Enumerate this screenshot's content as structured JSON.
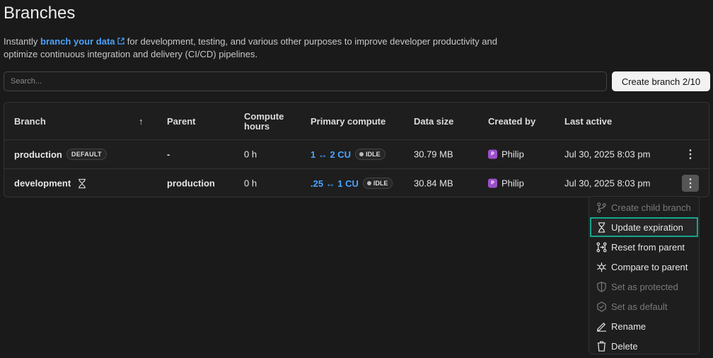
{
  "page": {
    "title": "Branches",
    "desc_pre": "Instantly ",
    "desc_link": "branch your data",
    "desc_post": " for development, testing, and various other purposes to improve developer productivity and optimize continuous integration and delivery (CI/CD) pipelines."
  },
  "search": {
    "placeholder": "Search...",
    "value": ""
  },
  "create_button": "Create branch 2/10",
  "table": {
    "headers": {
      "branch": "Branch",
      "parent": "Parent",
      "compute": "Compute hours",
      "primary": "Primary compute",
      "size": "Data size",
      "created": "Created by",
      "active": "Last active"
    },
    "sort": "ascending",
    "rows": [
      {
        "branch": "production",
        "badge": "DEFAULT",
        "parent": "-",
        "compute": "0 h",
        "cu": "1 ↔ 2 CU",
        "status": "IDLE",
        "size": "30.79 MB",
        "avatar": "P",
        "created": "Philip",
        "active": "Jul 30, 2025 8:03 pm"
      },
      {
        "branch": "development",
        "icon": "hourglass-icon",
        "parent": "production",
        "compute": "0 h",
        "cu": ".25 ↔ 1 CU",
        "status": "IDLE",
        "size": "30.84 MB",
        "avatar": "P",
        "created": "Philip",
        "active": "Jul 30, 2025 8:03 pm"
      }
    ]
  },
  "menu": {
    "items": [
      {
        "label": "Create child branch",
        "icon": "branch-icon",
        "disabled": true
      },
      {
        "label": "Update expiration",
        "icon": "hourglass-icon",
        "highlighted": true
      },
      {
        "label": "Reset from parent",
        "icon": "reset-icon"
      },
      {
        "label": "Compare to parent",
        "icon": "compare-icon"
      },
      {
        "label": "Set as protected",
        "icon": "shield-icon",
        "disabled": true
      },
      {
        "label": "Set as default",
        "icon": "check-badge-icon",
        "disabled": true
      },
      {
        "label": "Rename",
        "icon": "pencil-icon"
      },
      {
        "label": "Delete",
        "icon": "trash-icon"
      }
    ]
  },
  "colors": {
    "accent": "#4aa3ff",
    "highlight": "#16a58c",
    "avatar": "#9b4fc9"
  }
}
